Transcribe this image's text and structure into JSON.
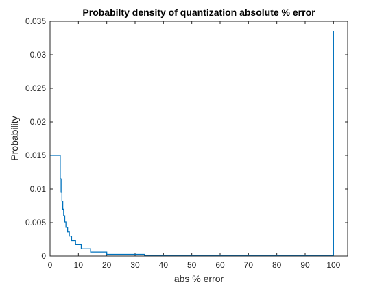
{
  "chart_data": {
    "type": "line",
    "title": "Probabilty density of quantization absolute % error",
    "xlabel": "abs % error",
    "ylabel": "Probability",
    "xlim": [
      0,
      105
    ],
    "ylim": [
      0,
      0.035
    ],
    "xticks": [
      0,
      10,
      20,
      30,
      40,
      50,
      60,
      70,
      80,
      90,
      100
    ],
    "yticks": [
      0,
      0.005,
      0.01,
      0.015,
      0.02,
      0.025,
      0.03,
      0.035
    ],
    "ytick_labels": [
      "0",
      "0.005",
      "0.01",
      "0.015",
      "0.02",
      "0.025",
      "0.03",
      "0.035"
    ],
    "grid": false,
    "legend": "none",
    "series": [
      {
        "color": "#0072bd",
        "points": [
          [
            0,
            0.015
          ],
          [
            3.6,
            0.015
          ],
          [
            3.6,
            0.0115
          ],
          [
            3.9,
            0.0115
          ],
          [
            3.9,
            0.0095
          ],
          [
            4.2,
            0.0095
          ],
          [
            4.2,
            0.0082
          ],
          [
            4.5,
            0.0082
          ],
          [
            4.5,
            0.007
          ],
          [
            4.8,
            0.007
          ],
          [
            4.8,
            0.006
          ],
          [
            5.2,
            0.006
          ],
          [
            5.2,
            0.0051
          ],
          [
            5.6,
            0.0051
          ],
          [
            5.6,
            0.0043
          ],
          [
            6.2,
            0.0043
          ],
          [
            6.2,
            0.0036
          ],
          [
            6.8,
            0.0036
          ],
          [
            6.8,
            0.003
          ],
          [
            7.6,
            0.003
          ],
          [
            7.6,
            0.0023
          ],
          [
            9.0,
            0.0023
          ],
          [
            9.0,
            0.0017
          ],
          [
            11.0,
            0.0017
          ],
          [
            11.0,
            0.0011
          ],
          [
            14.3,
            0.0011
          ],
          [
            14.3,
            0.0006
          ],
          [
            20.0,
            0.0006
          ],
          [
            20.0,
            0.00025
          ],
          [
            33.3,
            0.00025
          ],
          [
            33.3,
            0.0001
          ],
          [
            50.0,
            0.0001
          ],
          [
            50.0,
            3e-05
          ],
          [
            99.9,
            3e-05
          ],
          [
            99.9,
            0.0334
          ],
          [
            100,
            0.0334
          ],
          [
            100,
            0.0
          ]
        ]
      }
    ]
  }
}
